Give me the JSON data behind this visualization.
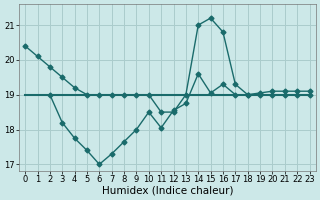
{
  "xlabel": "Humidex (Indice chaleur)",
  "bg_color": "#cce8e8",
  "grid_color": "#aacccc",
  "line_color": "#1a6b6b",
  "ylim": [
    16.8,
    21.6
  ],
  "xlim": [
    -0.5,
    23.5
  ],
  "yticks": [
    17,
    18,
    19,
    20,
    21
  ],
  "xticks": [
    0,
    1,
    2,
    3,
    4,
    5,
    6,
    7,
    8,
    9,
    10,
    11,
    12,
    13,
    14,
    15,
    16,
    17,
    18,
    19,
    20,
    21,
    22,
    23
  ],
  "line1_pts": [
    [
      0,
      20.4
    ],
    [
      1,
      20.1
    ],
    [
      2,
      19.8
    ],
    [
      3,
      19.5
    ],
    [
      4,
      19.2
    ],
    [
      5,
      19.0
    ],
    [
      6,
      19.0
    ],
    [
      7,
      19.0
    ],
    [
      8,
      19.0
    ],
    [
      9,
      19.0
    ],
    [
      10,
      19.0
    ],
    [
      11,
      18.5
    ],
    [
      12,
      18.5
    ],
    [
      13,
      19.0
    ],
    [
      14,
      21.0
    ],
    [
      15,
      21.2
    ],
    [
      16,
      20.8
    ],
    [
      17,
      19.3
    ],
    [
      18,
      19.0
    ],
    [
      19,
      19.05
    ],
    [
      20,
      19.1
    ],
    [
      21,
      19.1
    ],
    [
      22,
      19.1
    ],
    [
      23,
      19.1
    ]
  ],
  "line2_pts": [
    [
      2,
      19.0
    ],
    [
      3,
      18.2
    ],
    [
      4,
      17.75
    ],
    [
      5,
      17.4
    ],
    [
      6,
      17.0
    ],
    [
      7,
      17.3
    ],
    [
      8,
      17.65
    ],
    [
      9,
      18.0
    ],
    [
      10,
      18.5
    ],
    [
      11,
      18.05
    ],
    [
      12,
      18.55
    ],
    [
      13,
      18.75
    ],
    [
      14,
      19.6
    ],
    [
      15,
      19.05
    ],
    [
      16,
      19.3
    ],
    [
      17,
      19.0
    ],
    [
      18,
      19.0
    ],
    [
      19,
      19.0
    ],
    [
      20,
      19.0
    ],
    [
      21,
      19.0
    ],
    [
      22,
      19.0
    ],
    [
      23,
      19.0
    ]
  ],
  "line3_pts": [
    [
      0,
      19.0
    ],
    [
      23,
      19.0
    ]
  ],
  "marker_size": 2.5,
  "linewidth": 1.0,
  "tick_fontsize": 6,
  "label_fontsize": 7.5
}
